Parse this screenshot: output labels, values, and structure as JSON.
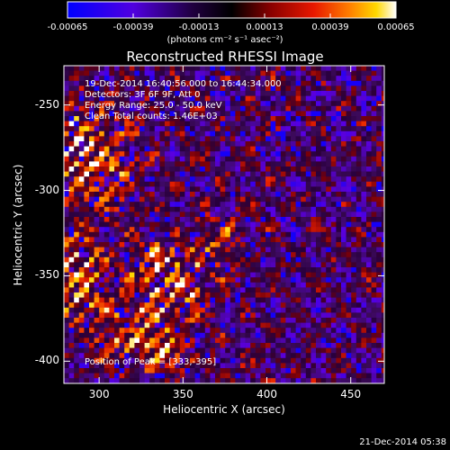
{
  "colorbar": {
    "ticks": [
      "-0.00065",
      "-0.00039",
      "-0.00013",
      "0.00013",
      "0.00039",
      "0.00065"
    ],
    "units": "(photons cm⁻² s⁻¹ asec⁻²)",
    "range": [
      -0.00065,
      0.00065
    ],
    "colors": [
      "#0000ff",
      "#6a00d8",
      "#200040",
      "#000000",
      "#7a0000",
      "#e01000",
      "#ff7a00",
      "#ffd000",
      "#ffffff"
    ]
  },
  "chart_data": {
    "type": "heatmap",
    "title": "Reconstructed RHESSI Image",
    "xlabel": "Heliocentric X (arcsec)",
    "ylabel": "Heliocentric Y (arcsec)",
    "xlim": [
      279,
      470
    ],
    "ylim": [
      -413,
      -227
    ],
    "x_ticks": [
      "300",
      "350",
      "400",
      "450"
    ],
    "y_ticks": [
      "-250",
      "-300",
      "-350",
      "-400"
    ],
    "x_tick_values": [
      300,
      350,
      400,
      450
    ],
    "y_tick_values": [
      -250,
      -300,
      -350,
      -400
    ],
    "annotations": [
      "19-Dec-2014 16:40:56.000 to 16:44:34.000",
      "Detectors: 3F 6F 9F, Att 0",
      "Energy Range: 25.0 - 50.0 keV",
      "Clean    Total counts: 1.46E+03",
      "Position of Peak = [333,-395]"
    ],
    "peak": [
      333,
      -395
    ]
  },
  "footer": {
    "timestamp": "21-Dec-2014 05:38"
  }
}
